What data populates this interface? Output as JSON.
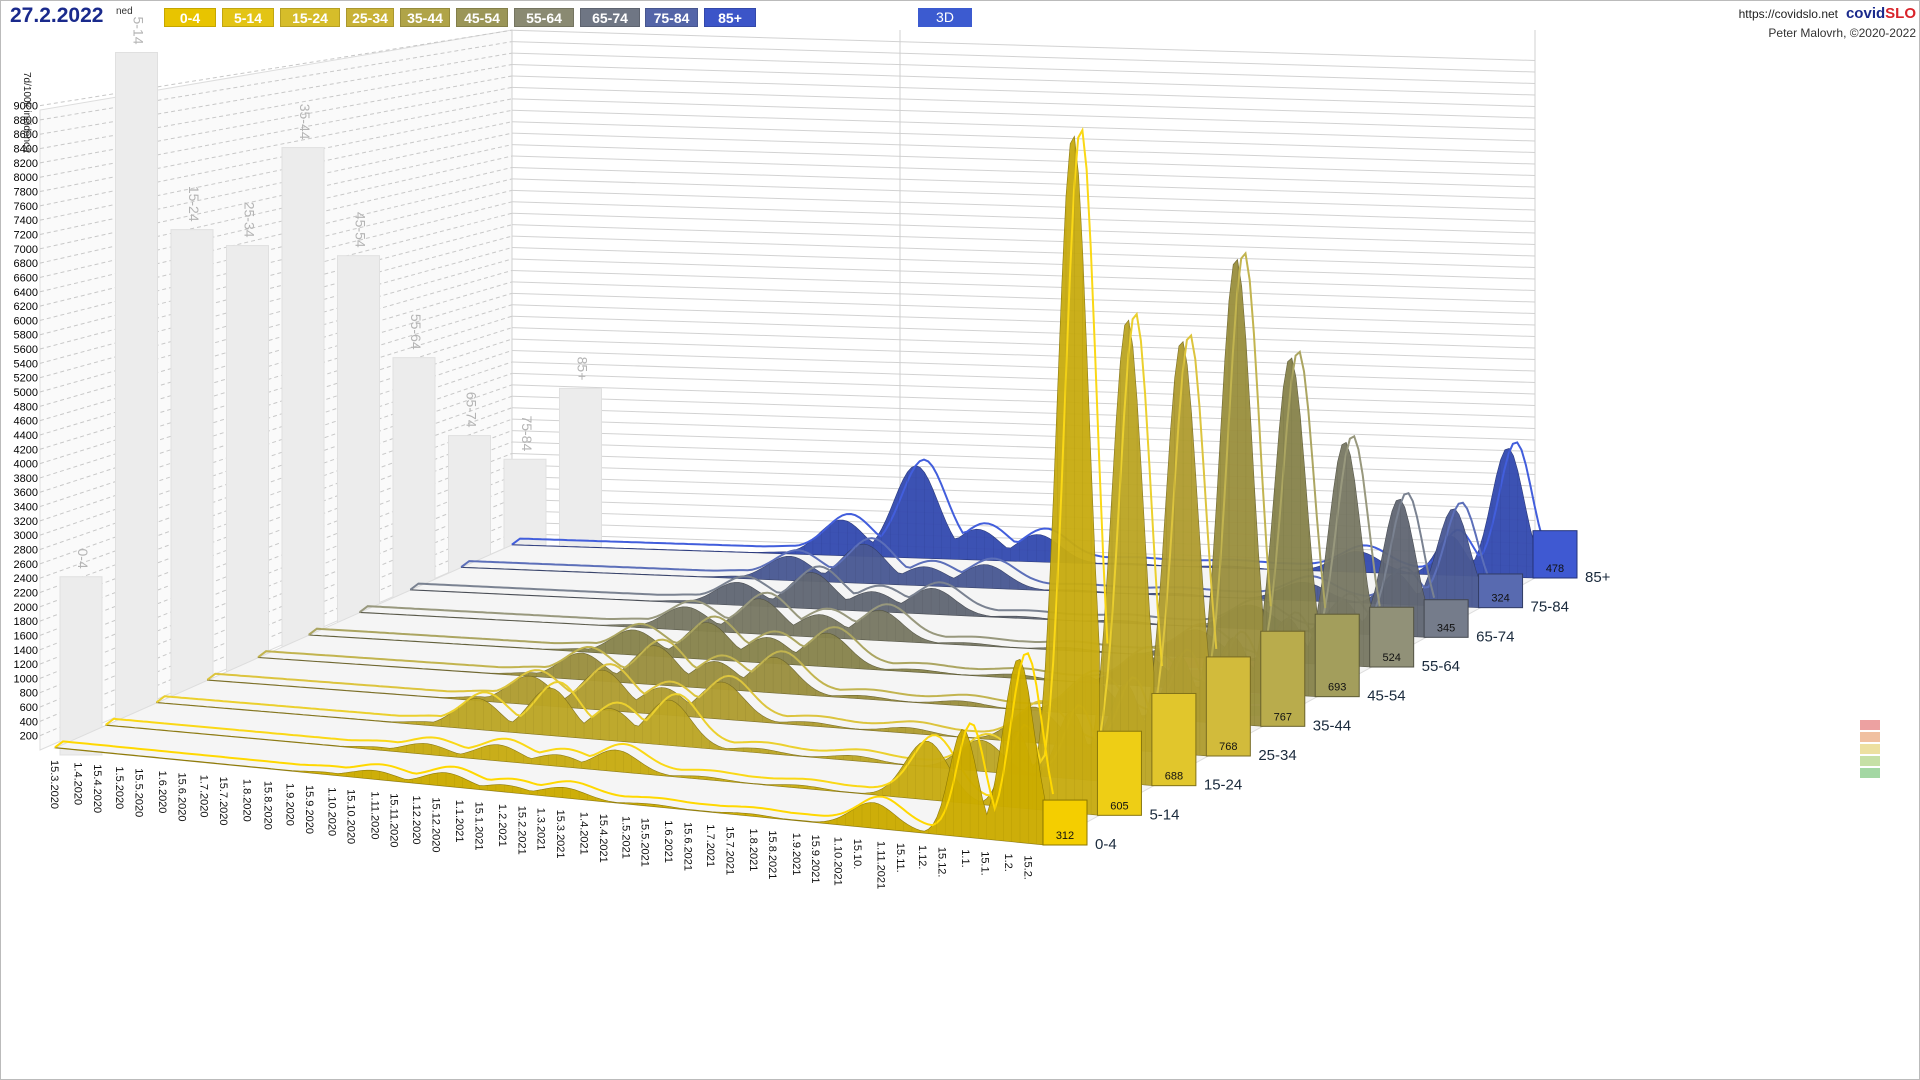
{
  "header": {
    "date": "27.2.2022",
    "day_of_week": "ned",
    "mode_button": "3D",
    "site_url": "https://covidslo.net",
    "brand_part1": "covid",
    "brand_part2": "SLO",
    "author": "Peter Malovrh, ©2020-2022"
  },
  "legend": [
    {
      "label": "0-4",
      "color": "#e8c400"
    },
    {
      "label": "5-14",
      "color": "#e3c414"
    },
    {
      "label": "15-24",
      "color": "#d6bd2a"
    },
    {
      "label": "25-34",
      "color": "#c8b238"
    },
    {
      "label": "35-44",
      "color": "#b0a448"
    },
    {
      "label": "45-54",
      "color": "#9b9658"
    },
    {
      "label": "55-64",
      "color": "#8a8a72"
    },
    {
      "label": "65-74",
      "color": "#6f7684"
    },
    {
      "label": "75-84",
      "color": "#5465a8"
    },
    {
      "label": "85+",
      "color": "#3c55c8"
    }
  ],
  "chart_data": {
    "type": "area",
    "subtype": "3d-ridge",
    "ylabel": "7d/100k incidenca",
    "yticks": [
      200,
      400,
      600,
      800,
      1000,
      1200,
      1400,
      1600,
      1800,
      2000,
      2200,
      2400,
      2600,
      2800,
      3000,
      3200,
      3400,
      3600,
      3800,
      4000,
      4200,
      4400,
      4600,
      4800,
      5000,
      5200,
      5400,
      5600,
      5800,
      6000,
      6200,
      6400,
      6600,
      6800,
      7000,
      7200,
      7400,
      7600,
      7800,
      8000,
      8200,
      8400,
      8600,
      8800,
      9000
    ],
    "ylim": [
      0,
      9000
    ],
    "x_dates": [
      "15.3.2020",
      "1.4.2020",
      "15.4.2020",
      "1.5.2020",
      "15.5.2020",
      "1.6.2020",
      "15.6.2020",
      "1.7.2020",
      "15.7.2020",
      "1.8.2020",
      "15.8.2020",
      "1.9.2020",
      "15.9.2020",
      "1.10.2020",
      "15.10.2020",
      "1.11.2020",
      "15.11.2020",
      "1.12.2020",
      "15.12.2020",
      "1.1.2021",
      "15.1.2021",
      "1.2.2021",
      "15.2.2021",
      "1.3.2021",
      "15.3.2021",
      "1.4.2021",
      "15.4.2021",
      "1.5.2021",
      "15.5.2021",
      "1.6.2021",
      "15.6.2021",
      "1.7.2021",
      "15.7.2021",
      "1.8.2021",
      "15.8.2021",
      "1.9.2021",
      "15.9.2021",
      "1.10.2021",
      "15.10.",
      "1.11.2021",
      "15.11.",
      "1.12.",
      "15.12.",
      "1.1.",
      "15.1.",
      "1.2.",
      "15.2."
    ],
    "x_dates_numeric": [
      0,
      17,
      31,
      47,
      61,
      78,
      92,
      108,
      122,
      139,
      154,
      170,
      184,
      200,
      214,
      231,
      245,
      261,
      275,
      292,
      306,
      323,
      337,
      351,
      365,
      382,
      396,
      412,
      426,
      443,
      457,
      473,
      487,
      504,
      518,
      535,
      549,
      565,
      579,
      596,
      610,
      626,
      640,
      657,
      671,
      688,
      702
    ],
    "x_last": 714,
    "series": [
      {
        "name": "0-4",
        "current": 312,
        "peak": 2300,
        "peaks": [
          [
            197,
            30
          ],
          [
            230,
            110
          ],
          [
            282,
            170
          ],
          [
            325,
            90
          ],
          [
            367,
            130
          ],
          [
            430,
            30
          ],
          [
            500,
            30
          ],
          [
            590,
            320
          ],
          [
            655,
            1350
          ],
          [
            695,
            2300
          ],
          [
            714,
            312
          ]
        ]
      },
      {
        "name": "5-14",
        "current": 605,
        "peak": 8800,
        "peaks": [
          [
            197,
            40
          ],
          [
            230,
            140
          ],
          [
            282,
            210
          ],
          [
            325,
            150
          ],
          [
            367,
            280
          ],
          [
            430,
            40
          ],
          [
            500,
            40
          ],
          [
            590,
            760
          ],
          [
            655,
            1000
          ],
          [
            695,
            8800
          ],
          [
            714,
            605
          ]
        ]
      },
      {
        "name": "15-24",
        "current": 688,
        "peak": 6250,
        "peaks": [
          [
            197,
            50
          ],
          [
            230,
            420
          ],
          [
            282,
            640
          ],
          [
            325,
            430
          ],
          [
            367,
            610
          ],
          [
            430,
            60
          ],
          [
            500,
            70
          ],
          [
            590,
            420
          ],
          [
            655,
            910
          ],
          [
            695,
            6250
          ],
          [
            714,
            688
          ]
        ]
      },
      {
        "name": "25-34",
        "current": 768,
        "peak": 5780,
        "peaks": [
          [
            197,
            60
          ],
          [
            230,
            400
          ],
          [
            282,
            560
          ],
          [
            325,
            380
          ],
          [
            367,
            520
          ],
          [
            430,
            55
          ],
          [
            500,
            80
          ],
          [
            590,
            500
          ],
          [
            655,
            930
          ],
          [
            695,
            5780
          ],
          [
            714,
            768
          ]
        ]
      },
      {
        "name": "35-44",
        "current": 767,
        "peak": 6780,
        "peaks": [
          [
            197,
            55
          ],
          [
            230,
            390
          ],
          [
            282,
            570
          ],
          [
            325,
            400
          ],
          [
            367,
            520
          ],
          [
            430,
            50
          ],
          [
            500,
            70
          ],
          [
            590,
            550
          ],
          [
            655,
            950
          ],
          [
            695,
            6780
          ],
          [
            714,
            767
          ]
        ]
      },
      {
        "name": "45-54",
        "current": 693,
        "peak": 5120,
        "peaks": [
          [
            197,
            50
          ],
          [
            230,
            380
          ],
          [
            282,
            560
          ],
          [
            325,
            390
          ],
          [
            367,
            510
          ],
          [
            430,
            45
          ],
          [
            500,
            60
          ],
          [
            590,
            500
          ],
          [
            655,
            820
          ],
          [
            695,
            5120
          ],
          [
            714,
            693
          ]
        ]
      },
      {
        "name": "55-64",
        "current": 524,
        "peak": 3540,
        "peaks": [
          [
            197,
            45
          ],
          [
            230,
            370
          ],
          [
            282,
            560
          ],
          [
            325,
            360
          ],
          [
            367,
            480
          ],
          [
            430,
            40
          ],
          [
            500,
            50
          ],
          [
            590,
            440
          ],
          [
            655,
            700
          ],
          [
            695,
            3540
          ],
          [
            714,
            524
          ]
        ]
      },
      {
        "name": "65-74",
        "current": 345,
        "peak": 2270,
        "peaks": [
          [
            197,
            40
          ],
          [
            230,
            380
          ],
          [
            282,
            600
          ],
          [
            325,
            330
          ],
          [
            367,
            430
          ],
          [
            430,
            35
          ],
          [
            500,
            45
          ],
          [
            590,
            400
          ],
          [
            655,
            560
          ],
          [
            695,
            2270
          ],
          [
            714,
            345
          ]
        ]
      },
      {
        "name": "75-84",
        "current": 324,
        "peak": 1700,
        "peaks": [
          [
            197,
            40
          ],
          [
            230,
            420
          ],
          [
            282,
            680
          ],
          [
            325,
            330
          ],
          [
            367,
            410
          ],
          [
            430,
            30
          ],
          [
            500,
            40
          ],
          [
            590,
            320
          ],
          [
            655,
            540
          ],
          [
            695,
            1700
          ],
          [
            714,
            324
          ]
        ]
      },
      {
        "name": "85+",
        "current": 478,
        "peak": 2350,
        "peaks": [
          [
            197,
            40
          ],
          [
            230,
            650
          ],
          [
            282,
            1680
          ],
          [
            325,
            560
          ],
          [
            367,
            500
          ],
          [
            430,
            30
          ],
          [
            500,
            40
          ],
          [
            590,
            380
          ],
          [
            655,
            720
          ],
          [
            695,
            2350
          ],
          [
            714,
            478
          ]
        ]
      }
    ],
    "wall_max_bars": [
      {
        "name": "0-4",
        "value": 2300
      },
      {
        "name": "5-14",
        "value": 8800
      },
      {
        "name": "15-24",
        "value": 6250
      },
      {
        "name": "25-34",
        "value": 5780
      },
      {
        "name": "35-44",
        "value": 6780
      },
      {
        "name": "45-54",
        "value": 5120
      },
      {
        "name": "55-64",
        "value": 3540
      },
      {
        "name": "65-74",
        "value": 2270
      },
      {
        "name": "75-84",
        "value": 1700
      },
      {
        "name": "85+",
        "value": 2350
      }
    ],
    "grid": true
  }
}
